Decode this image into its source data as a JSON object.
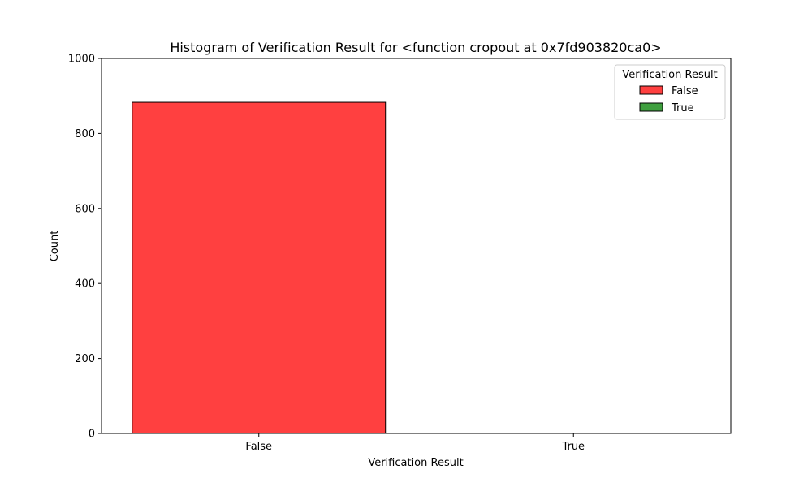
{
  "chart_data": {
    "type": "bar",
    "title": "Histogram of Verification Result for <function cropout at 0x7fd903820ca0>",
    "xlabel": "Verification Result",
    "ylabel": "Count",
    "categories": [
      "False",
      "True"
    ],
    "values": [
      883,
      1
    ],
    "ylim": [
      0,
      1000
    ],
    "yticks": [
      0,
      200,
      400,
      600,
      800,
      1000
    ],
    "colors": [
      "#ff4040",
      "#3f9f3f"
    ],
    "legend": {
      "title": "Verification Result",
      "placement": "top-right",
      "entries": [
        {
          "label": "False",
          "color": "#ff4040"
        },
        {
          "label": "True",
          "color": "#3f9f3f"
        }
      ]
    },
    "grid": false
  }
}
